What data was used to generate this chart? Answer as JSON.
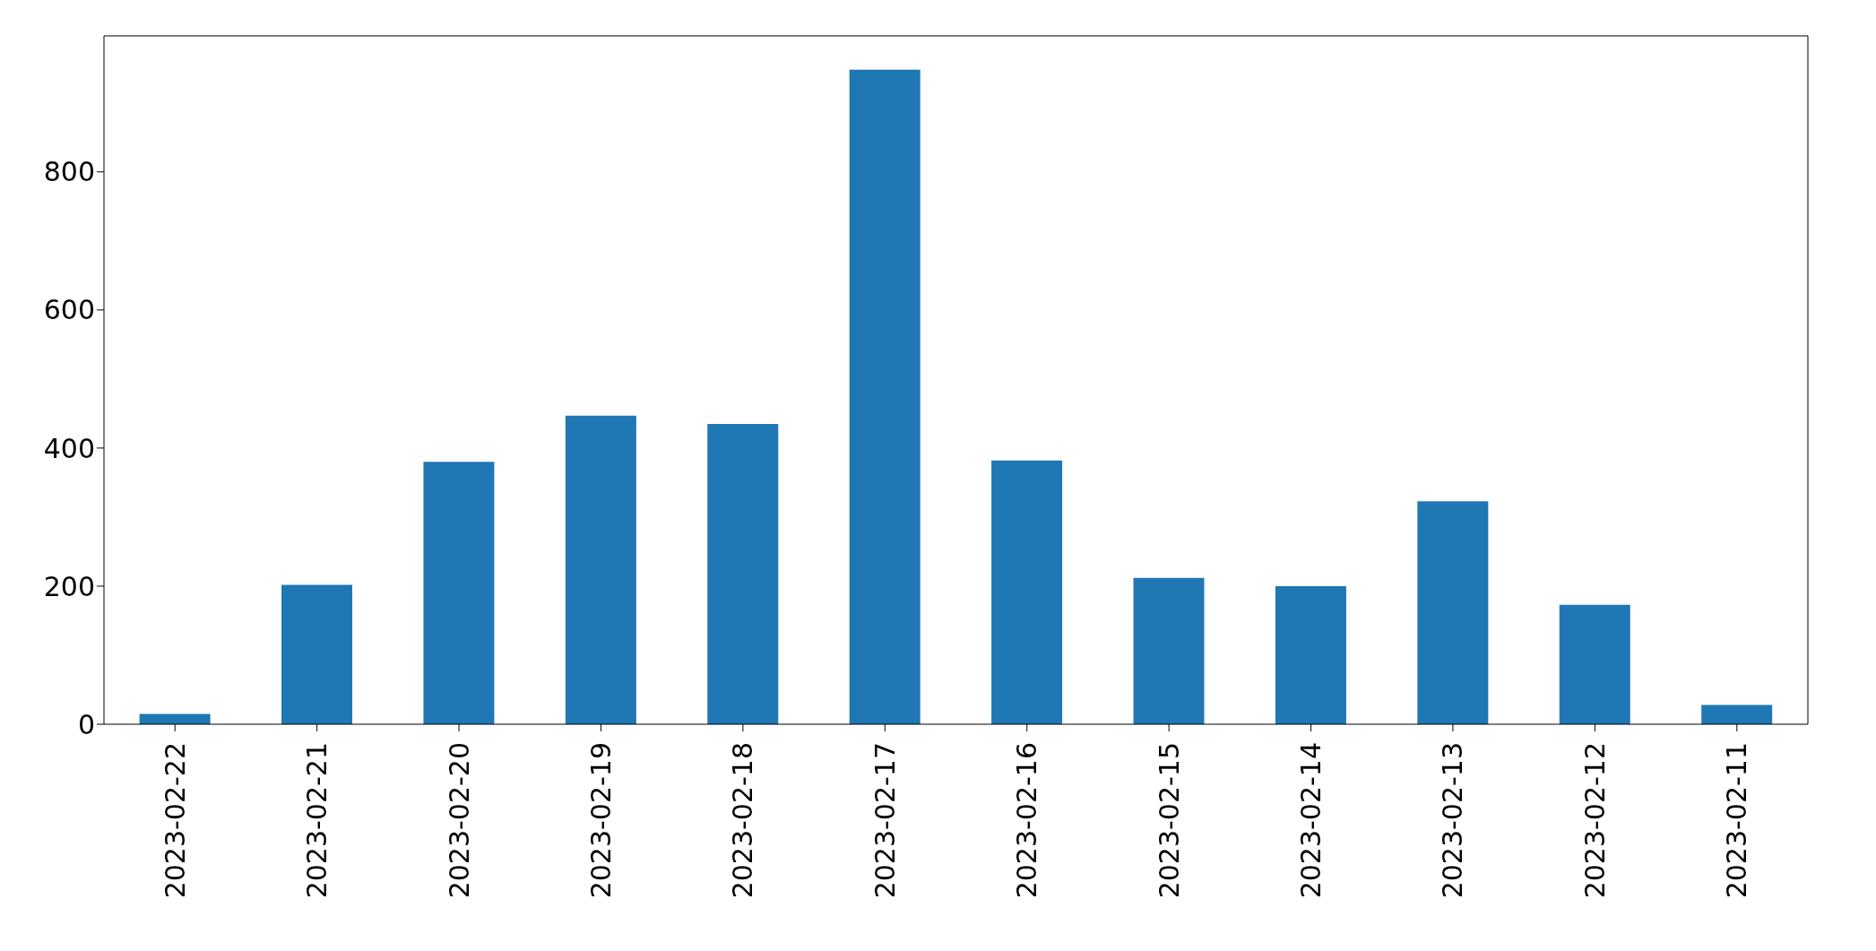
{
  "chart_data": {
    "type": "bar",
    "categories": [
      "2023-02-22",
      "2023-02-21",
      "2023-02-20",
      "2023-02-19",
      "2023-02-18",
      "2023-02-17",
      "2023-02-16",
      "2023-02-15",
      "2023-02-14",
      "2023-02-13",
      "2023-02-12",
      "2023-02-11"
    ],
    "values": [
      15,
      202,
      380,
      447,
      435,
      948,
      382,
      212,
      200,
      323,
      173,
      28
    ],
    "color": "#1f77b4",
    "ylim": [
      0,
      997
    ],
    "yticks": [
      0,
      200,
      400,
      600,
      800
    ],
    "grid": false
  }
}
